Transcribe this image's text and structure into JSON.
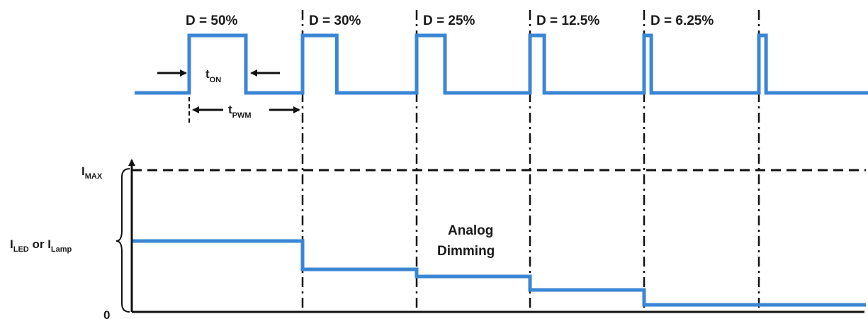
{
  "duty_labels": [
    "D = 50%",
    "D = 30%",
    "D = 25%",
    "D = 12.5%",
    "D = 6.25%"
  ],
  "ton_label": {
    "main": "t",
    "sub": "ON"
  },
  "tpwm_label": {
    "main": "t",
    "sub": "PWM"
  },
  "imax_label": {
    "main": "I",
    "sub": "MAX"
  },
  "iled_label": {
    "main1": "I",
    "sub1": "LED",
    "or": " or ",
    "main2": "I",
    "sub2": "Lamp"
  },
  "zero_label": "0",
  "analog_dimming": {
    "line1": "Analog",
    "line2": "Dimming"
  },
  "colors": {
    "signal": "#3a86d4",
    "ink": "#111111"
  },
  "chart_data": {
    "type": "line",
    "pwm_duty_cycles_percent": [
      50,
      30,
      25,
      12.5,
      6.25
    ],
    "analog_current_levels_fraction_of_imax": [
      0.5,
      0.3,
      0.25,
      0.125,
      0.0625
    ]
  }
}
